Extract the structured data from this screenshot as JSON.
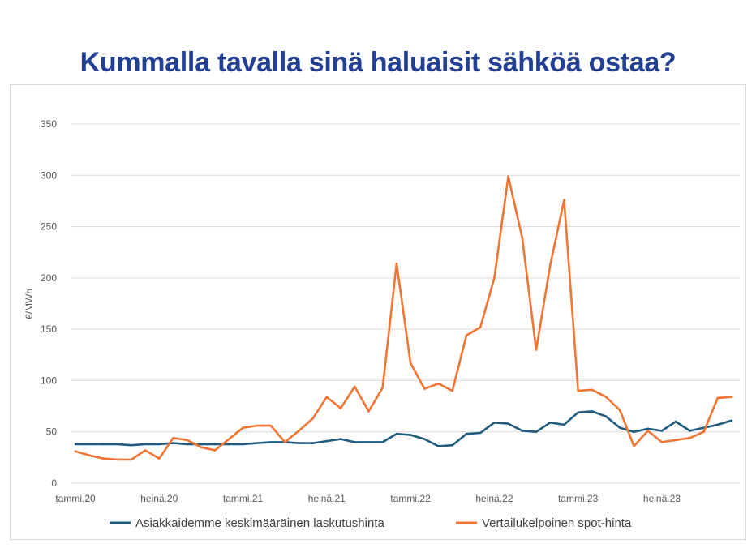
{
  "title": "Kummalla tavalla sinä haluaisit sähköä ostaa?",
  "chart_data": {
    "type": "line",
    "title": "Kummalla tavalla sinä haluaisit sähköä ostaa?",
    "xlabel": "",
    "ylabel": "€/MWh",
    "ylim": [
      0,
      350
    ],
    "yticks": [
      0,
      50,
      100,
      150,
      200,
      250,
      300,
      350
    ],
    "grid": true,
    "legend_position": "bottom",
    "x_tick_labels": [
      "tammi.20",
      "heinä.20",
      "tammi.21",
      "heinä.21",
      "tammi.22",
      "heinä.22",
      "tammi.23",
      "heinä.23"
    ],
    "x_tick_every": 6,
    "n_points": 48,
    "series": [
      {
        "name": "Asiakkaidemme keskimääräinen laskutushinta",
        "color": "#1f5b7e",
        "values": [
          38,
          38,
          38,
          38,
          37,
          38,
          38,
          39,
          38,
          38,
          38,
          38,
          38,
          39,
          40,
          40,
          39,
          39,
          41,
          43,
          40,
          40,
          40,
          48,
          47,
          43,
          36,
          37,
          48,
          49,
          59,
          58,
          51,
          50,
          59,
          57,
          69,
          70,
          65,
          54,
          50,
          53,
          51,
          60,
          51,
          54,
          57,
          61
        ]
      },
      {
        "name": "Vertailukelpoinen spot-hinta",
        "color": "#f07532",
        "values": [
          31,
          27,
          24,
          23,
          23,
          32,
          24,
          44,
          42,
          35,
          32,
          43,
          54,
          56,
          56,
          40,
          51,
          63,
          84,
          73,
          94,
          70,
          93,
          214,
          117,
          92,
          97,
          90,
          144,
          152,
          200,
          299,
          239,
          130,
          212,
          276,
          90,
          91,
          84,
          71,
          36,
          51,
          40,
          42,
          44,
          50,
          83,
          84
        ]
      }
    ]
  }
}
